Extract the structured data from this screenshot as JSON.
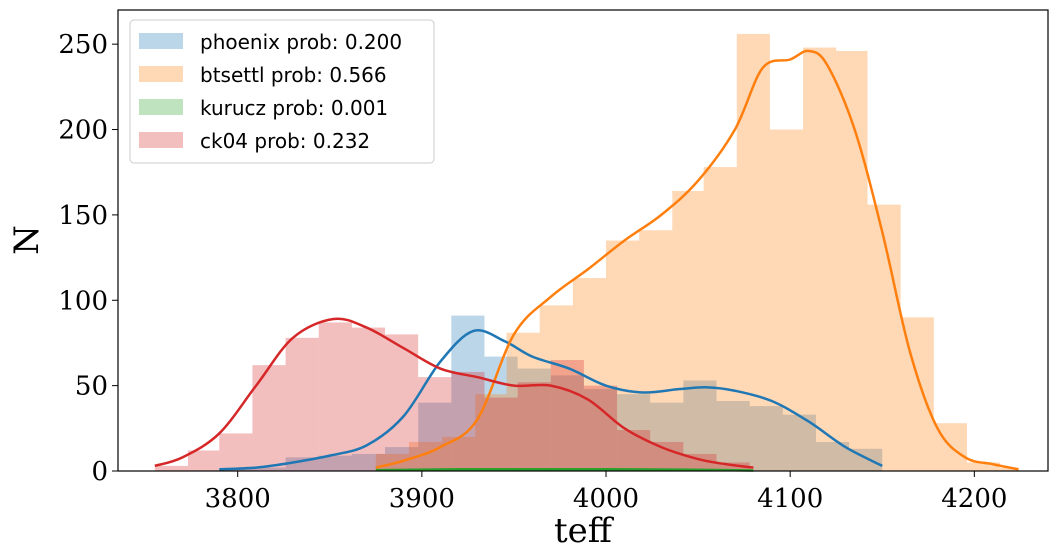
{
  "chart_data": {
    "type": "histogram",
    "xlabel": "teff",
    "ylabel": "N",
    "xlim": [
      3735,
      4240
    ],
    "ylim": [
      0,
      270
    ],
    "xticks": [
      3800,
      3900,
      4000,
      4100,
      4200
    ],
    "yticks": [
      0,
      50,
      100,
      150,
      200,
      250
    ],
    "legend_position": "upper-left",
    "series": [
      {
        "name": "phoenix prob: 0.200",
        "color": "#1f77b4",
        "bins": [
          [
            3790,
            3808,
            1
          ],
          [
            3808,
            3826,
            2
          ],
          [
            3826,
            3844,
            8
          ],
          [
            3844,
            3862,
            9
          ],
          [
            3862,
            3880,
            10
          ],
          [
            3880,
            3898,
            14
          ],
          [
            3898,
            3916,
            40
          ],
          [
            3916,
            3934,
            91
          ],
          [
            3934,
            3952,
            67
          ],
          [
            3952,
            3970,
            60
          ],
          [
            3970,
            3988,
            56
          ],
          [
            3988,
            4006,
            48
          ],
          [
            4006,
            4024,
            45
          ],
          [
            4024,
            4042,
            40
          ],
          [
            4042,
            4060,
            53
          ],
          [
            4060,
            4078,
            41
          ],
          [
            4078,
            4096,
            38
          ],
          [
            4096,
            4114,
            33
          ],
          [
            4114,
            4132,
            17
          ],
          [
            4132,
            4150,
            13
          ]
        ],
        "kde_x": [
          3790,
          3810,
          3830,
          3850,
          3870,
          3890,
          3910,
          3928,
          3945,
          3960,
          3980,
          4000,
          4020,
          4040,
          4055,
          4070,
          4090,
          4110,
          4130,
          4150
        ],
        "kde_y": [
          1,
          2,
          5,
          9,
          15,
          32,
          64,
          82,
          76,
          67,
          60,
          50,
          46,
          48,
          49,
          47,
          41,
          29,
          14,
          3
        ]
      },
      {
        "name": "btsettl prob: 0.566",
        "color": "#ff7f0e",
        "bins": [
          [
            3875,
            3893,
            10
          ],
          [
            3893,
            3911,
            17
          ],
          [
            3911,
            3929,
            20
          ],
          [
            3929,
            3946,
            45
          ],
          [
            3946,
            3964,
            81
          ],
          [
            3964,
            3982,
            97
          ],
          [
            3982,
            4000,
            113
          ],
          [
            4000,
            4018,
            135
          ],
          [
            4018,
            4036,
            141
          ],
          [
            4036,
            4053,
            164
          ],
          [
            4053,
            4071,
            178
          ],
          [
            4071,
            4089,
            256
          ],
          [
            4089,
            4107,
            200
          ],
          [
            4107,
            4125,
            248
          ],
          [
            4125,
            4142,
            246
          ],
          [
            4142,
            4160,
            156
          ],
          [
            4160,
            4178,
            90
          ],
          [
            4178,
            4196,
            28
          ],
          [
            4196,
            4214,
            5
          ],
          [
            4214,
            4224,
            2
          ]
        ],
        "kde_x": [
          3875,
          3890,
          3910,
          3930,
          3950,
          3970,
          3990,
          4010,
          4030,
          4050,
          4070,
          4085,
          4100,
          4110,
          4120,
          4135,
          4150,
          4165,
          4180,
          4195,
          4210,
          4224
        ],
        "kde_y": [
          2,
          6,
          14,
          30,
          80,
          102,
          118,
          135,
          150,
          170,
          200,
          236,
          241,
          246,
          238,
          200,
          140,
          70,
          25,
          8,
          4,
          1
        ]
      },
      {
        "name": "kurucz prob: 0.001",
        "color": "#2ca02c",
        "bins": [
          [
            3875,
            3900,
            1
          ],
          [
            3900,
            3925,
            1
          ],
          [
            3925,
            3950,
            1
          ],
          [
            3950,
            3975,
            1
          ],
          [
            3975,
            4000,
            1
          ],
          [
            4000,
            4025,
            1
          ],
          [
            4025,
            4050,
            1
          ]
        ],
        "kde_x": [
          3875,
          3920,
          3960,
          4000,
          4040,
          4080
        ],
        "kde_y": [
          0.5,
          1,
          1,
          1,
          0.8,
          0.3
        ]
      },
      {
        "name": "ck04 prob: 0.232",
        "color": "#d62728",
        "bins": [
          [
            3755,
            3773,
            3
          ],
          [
            3773,
            3790,
            12
          ],
          [
            3790,
            3808,
            22
          ],
          [
            3808,
            3826,
            62
          ],
          [
            3826,
            3844,
            78
          ],
          [
            3844,
            3862,
            87
          ],
          [
            3862,
            3880,
            84
          ],
          [
            3880,
            3898,
            80
          ],
          [
            3898,
            3916,
            55
          ],
          [
            3916,
            3934,
            58
          ],
          [
            3934,
            3952,
            43
          ],
          [
            3952,
            3970,
            52
          ],
          [
            3970,
            3988,
            65
          ],
          [
            3988,
            4006,
            50
          ],
          [
            4006,
            4024,
            24
          ],
          [
            4024,
            4042,
            17
          ],
          [
            4042,
            4060,
            10
          ],
          [
            4060,
            4078,
            5
          ]
        ],
        "kde_x": [
          3755,
          3770,
          3790,
          3810,
          3830,
          3852,
          3870,
          3890,
          3910,
          3930,
          3950,
          3970,
          3990,
          4010,
          4030,
          4050,
          4065,
          4080
        ],
        "kde_y": [
          3,
          8,
          22,
          50,
          78,
          89,
          84,
          72,
          60,
          55,
          50,
          50,
          42,
          25,
          14,
          7,
          4,
          2
        ]
      }
    ]
  }
}
